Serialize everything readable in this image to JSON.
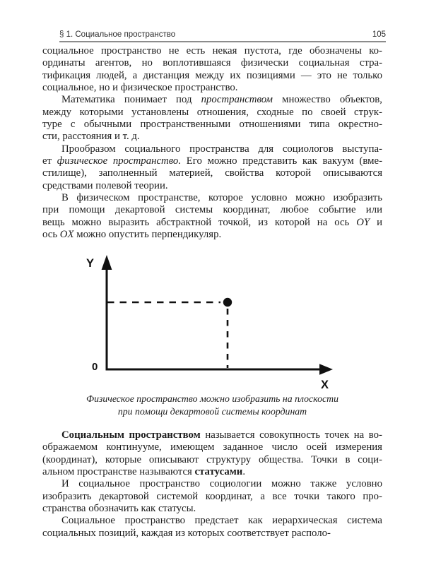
{
  "header": {
    "title": "§ 1. Социальное пространство",
    "page_number": "105"
  },
  "body": {
    "paragraphs_top": [
      {
        "indent": false,
        "lines": [
          "социальное пространство не есть некая пустота, где обозначены ко-",
          "ординаты агентов, но воплотившаяся физически социальная стра-",
          "тификация людей, а дистанция между их позициями — это не только",
          "социальное, но и физическое пространство."
        ]
      },
      {
        "indent": true,
        "lines": [
          [
            {
              "t": "Математика понимает под ",
              "st": "n"
            },
            {
              "t": "пространством",
              "st": "i"
            },
            {
              "t": " множество объектов,",
              "st": "n"
            }
          ],
          "между которыми установлены отношения, сходные по своей струк-",
          "туре с обычными пространственными отношениями типа окрестно-",
          "сти, расстояния и т. д."
        ]
      },
      {
        "indent": true,
        "lines": [
          "Прообразом социального пространства для социологов выступа-",
          [
            {
              "t": "ет ",
              "st": "n"
            },
            {
              "t": "физическое пространство.",
              "st": "i"
            },
            {
              "t": " Его можно представить как вакуум (вме-",
              "st": "n"
            }
          ],
          "стилище), заполненный материей, свойства которой описываются",
          "средствами полевой теории."
        ]
      },
      {
        "indent": true,
        "lines": [
          "В физическом пространстве, которое условно можно изобразить",
          "при помощи декартовой системы координат, любое событие или",
          [
            {
              "t": "вещь можно выразить абстрактной точкой, из которой на ось ",
              "st": "n"
            },
            {
              "t": "OY",
              "st": "i"
            },
            {
              "t": " и",
              "st": "n"
            }
          ],
          [
            {
              "t": "ось ",
              "st": "n"
            },
            {
              "t": "OX",
              "st": "i"
            },
            {
              "t": " можно опустить перпендикуляр.",
              "st": "n"
            }
          ]
        ]
      }
    ],
    "paragraphs_bottom": [
      {
        "indent": true,
        "lines": [
          [
            {
              "t": "Социальным пространством",
              "st": "b"
            },
            {
              "t": " называется совокупность точек на во-",
              "st": "n"
            }
          ],
          "ображаемом континууме, имеющем заданное число осей измерения",
          "(координат), которые описывают структуру общества. Точки в соци-",
          [
            {
              "t": "альном пространстве называются ",
              "st": "n"
            },
            {
              "t": "статусами",
              "st": "b"
            },
            {
              "t": ".",
              "st": "n"
            }
          ]
        ]
      },
      {
        "indent": true,
        "lines": [
          "И социальное пространство социологии можно также условно",
          "изобразить декартовой системой координат, а все точки такого про-",
          "странства обозначить как статусы."
        ]
      },
      {
        "indent": true,
        "lines": [
          "Социальное пространство предстает как иерархическая система",
          "социальных позиций, каждая из которых соответствует располо-"
        ]
      }
    ]
  },
  "figure": {
    "type": "cartesian-axes-diagram",
    "y_axis_label": "Y",
    "x_axis_label": "X",
    "origin_label": "0",
    "caption_line1": "Физическое пространство можно изобразить на плоскости",
    "caption_line2": "при помощи декартовой системы координат"
  },
  "colors": {
    "text": "#1c1c1c",
    "header_rule": "#8c8c8c",
    "figure_ink": "#111111"
  }
}
